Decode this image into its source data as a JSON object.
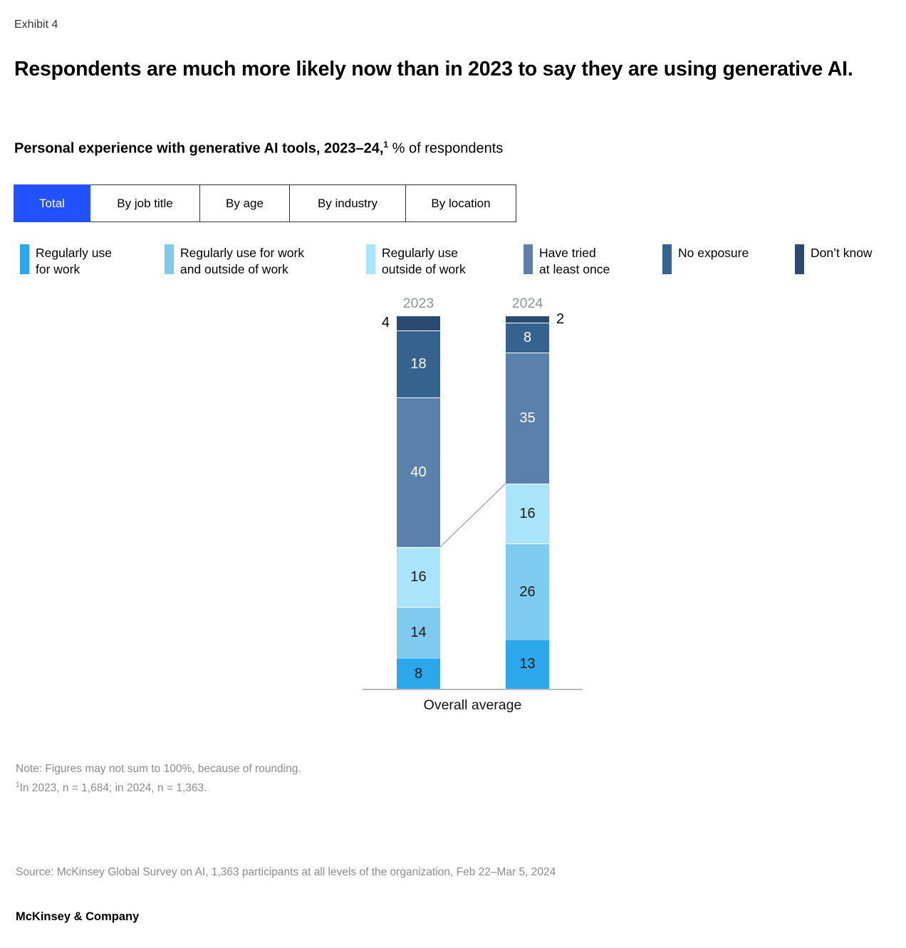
{
  "exhibit_label": "Exhibit 4",
  "title": "Respondents are much more likely now than in 2023 to say they are using generative AI.",
  "subtitle": {
    "bold_text": "Personal experience with generative AI tools, 2023–24,",
    "superscript": "1",
    "regular_text": " % of respondents"
  },
  "tabs": [
    {
      "label": "Total",
      "selected": true
    },
    {
      "label": "By job title",
      "selected": false
    },
    {
      "label": "By age",
      "selected": false
    },
    {
      "label": "By industry",
      "selected": false
    },
    {
      "label": "By location",
      "selected": false
    }
  ],
  "legend": {
    "items": [
      {
        "line1": "Regularly use",
        "line2": "for work",
        "color": "#2BA7EC"
      },
      {
        "line1": "Regularly use for work",
        "line2": "and outside of work",
        "color": "#7FCBF0"
      },
      {
        "line1": "Regularly use",
        "line2": "outside of work",
        "color": "#AAE4FB"
      },
      {
        "line1": "Have tried",
        "line2": "at least once",
        "color": "#5A81AB"
      },
      {
        "line1": "No exposure",
        "line2": "",
        "color": "#36628F"
      },
      {
        "line1": "Don’t know",
        "line2": "",
        "color": "#2B4A6F"
      }
    ]
  },
  "chart_data": {
    "type": "bar",
    "subtype": "stacked-vertical",
    "x_categories": [
      "2023",
      "2024"
    ],
    "group_label": "Overall average",
    "ylim": [
      0,
      100
    ],
    "grid": false,
    "legend_position": "top",
    "series": [
      {
        "name": "Regularly use for work",
        "color": "#2BA7EC",
        "values": [
          8,
          13
        ],
        "label_color": "#1a1a1a",
        "label_placement": "inside"
      },
      {
        "name": "Regularly use for work and outside of work",
        "color": "#7FCBF0",
        "values": [
          14,
          26
        ],
        "label_color": "#1a1a1a",
        "label_placement": "inside"
      },
      {
        "name": "Regularly use outside of work",
        "color": "#AAE4FB",
        "values": [
          16,
          16
        ],
        "label_color": "#1a1a1a",
        "label_placement": "inside"
      },
      {
        "name": "Have tried at least once",
        "color": "#5A81AB",
        "values": [
          40,
          35
        ],
        "label_color": "#ffffff",
        "label_placement": "inside"
      },
      {
        "name": "No exposure",
        "color": "#36628F",
        "values": [
          18,
          8
        ],
        "label_color": "#ffffff",
        "label_placement": "inside"
      },
      {
        "name": "Don’t know",
        "color": "#2B4A6F",
        "values": [
          4,
          2
        ],
        "label_color": "#000000",
        "label_placement": "outside",
        "outside_sides": [
          "left",
          "right"
        ]
      }
    ],
    "connector_boundary_series": "Regularly use outside of work"
  },
  "notes": {
    "note_line": "Note: Figures may not sum to 100%, because of rounding.",
    "footnote_superscript": "1",
    "footnote_line": "In 2023, n = 1,684; in 2024, n = 1,363."
  },
  "source": "Source: McKinsey Global Survey on AI, 1,363 participants at all levels of the organization, Feb 22–Mar 5, 2024",
  "footer": "McKinsey & Company",
  "colors": {
    "accent_tab": "#2251FF",
    "axis_line": "#BCBCBC",
    "connector_line": "#999999",
    "muted_text": "#8B8B8B",
    "year_label": "#8F9396"
  }
}
